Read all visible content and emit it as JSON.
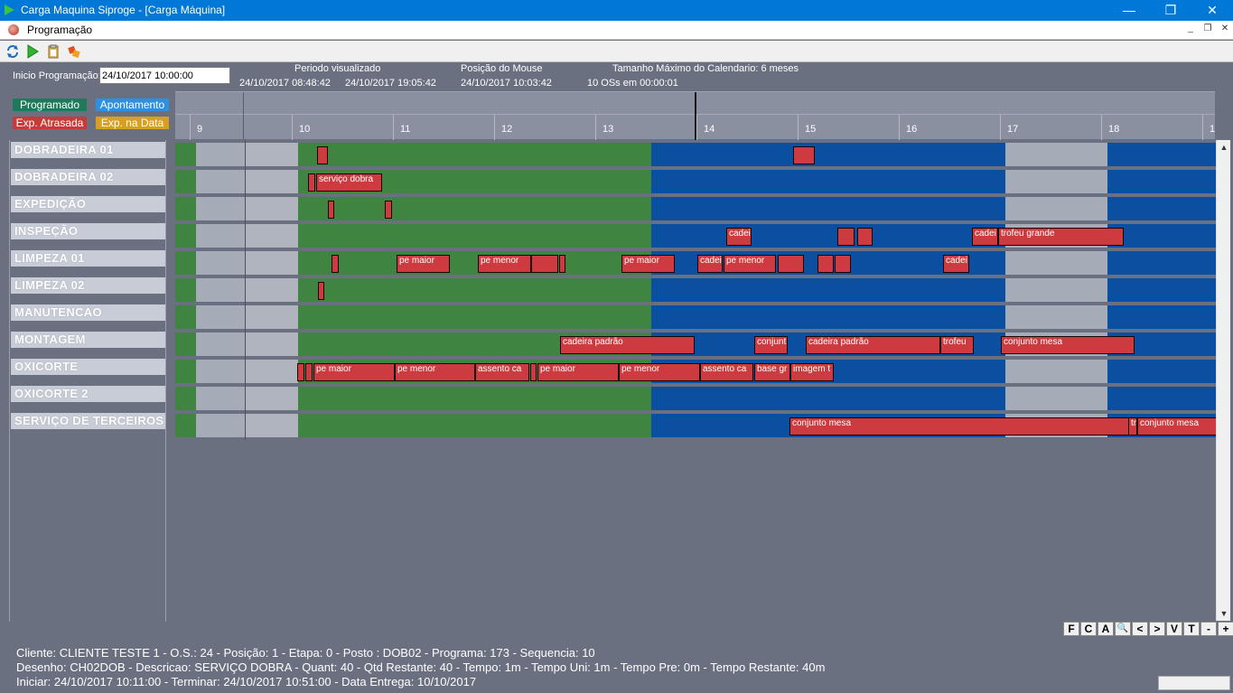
{
  "window": {
    "title": "Carga Maquina Siproge - [Carga Máquina]",
    "minimize": "—",
    "restore": "❐",
    "close": "✕"
  },
  "document": {
    "title": "Programação"
  },
  "header": {
    "inicio_label": "Inicio Programação:",
    "inicio_value": "24/10/2017 10:00:00",
    "periodo_label": "Periodo visualizado",
    "periodo_start": "24/10/2017 08:48:42",
    "periodo_end": "24/10/2017 19:05:42",
    "mouse_label": "Posição do Mouse",
    "mouse_value": "24/10/2017 10:03:42",
    "tamanho_label": "Tamanho Máximo do Calendario: 6 meses",
    "os_count": "10 OSs em 00:00:01"
  },
  "legend": {
    "programado": "Programado",
    "apontamento": "Apontamento",
    "atrasada": "Exp. Atrasada",
    "na_data": "Exp. na Data",
    "colors": {
      "programado": "#1e7a5a",
      "apontamento": "#2f8fe0",
      "atrasada": "#c83a3a",
      "na_data": "#d8a020"
    }
  },
  "ruler": {
    "hours": [
      "9",
      "10",
      "11",
      "12",
      "13",
      "14",
      "15",
      "16",
      "17",
      "18",
      "1"
    ]
  },
  "resources": [
    "DOBRADEIRA 01",
    "DOBRADEIRA 02",
    "EXPEDIÇÃO",
    "INSPEÇÃO",
    "LIMPEZA 01",
    "LIMPEZA 02",
    "MANUTENCAO",
    "MONTAGEM",
    "OXICORTE",
    "OXICORTE 2",
    "SERVIÇO DE TERCEIROS"
  ],
  "task_labels": {
    "servico_dobra": "serviço dobra",
    "cadei": "cadei",
    "trofeu_grande": "trofeu grande",
    "pe_maior": "pe maior",
    "pe_menor": "pe menor",
    "cadeira_padrao": "cadeira padrão",
    "conjunt": "conjunt",
    "trofeu": "trofeu",
    "conjunto_mesa": "conjunto mesa",
    "assento_ca": "assento ca",
    "base_gr": "base gr",
    "imagem_t": "imagem t",
    "tr": "tr"
  },
  "nav_buttons": [
    "F",
    "C",
    "A",
    "🔍",
    "<",
    ">",
    "V",
    "T",
    "-",
    "+"
  ],
  "status": {
    "line1": "Cliente: CLIENTE TESTE 1 - O.S.: 24 - Posição: 1 - Etapa: 0 - Posto : DOB02 - Programa: 173 - Sequencia: 10",
    "line2": "Desenho: CH02DOB - Descricao: SERVIÇO DOBRA - Quant: 40 - Qtd Restante: 40 - Tempo: 1m - Tempo Uni: 1m - Tempo Pre: 0m - Tempo Restante: 40m",
    "line3": "Iniciar: 24/10/2017 10:11:00 - Terminar: 24/10/2017 10:51:00 - Data Entrega: 10/10/2017"
  }
}
